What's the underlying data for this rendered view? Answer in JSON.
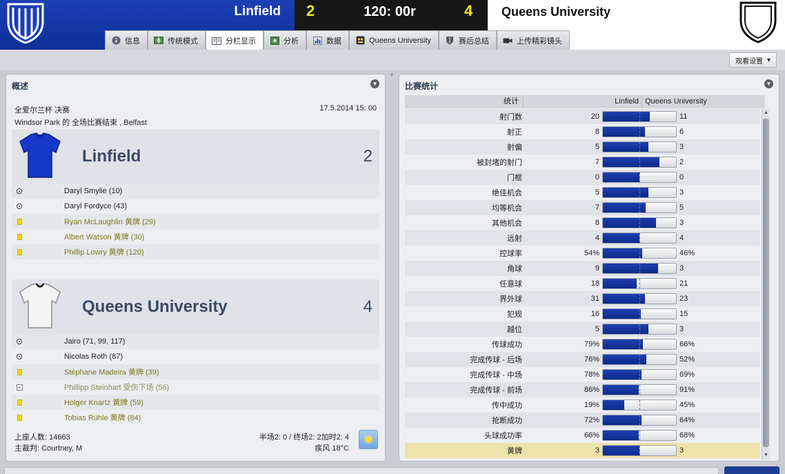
{
  "match": {
    "home_team": "Linfield",
    "home_score": "2",
    "clock": "120: 00r",
    "away_score": "4",
    "away_team": "Queens University"
  },
  "tabs": [
    {
      "label": "信息",
      "icon": "info-icon"
    },
    {
      "label": "传统模式",
      "icon": "pitch-icon"
    },
    {
      "label": "分栏显示",
      "icon": "split-view-icon"
    },
    {
      "label": "分析",
      "icon": "analysis-icon"
    },
    {
      "label": "数据",
      "icon": "stats-icon"
    },
    {
      "label": "Queens University",
      "icon": "team-icon"
    },
    {
      "label": "赛后总结",
      "icon": "shield-icon"
    },
    {
      "label": "上传精彩镜头",
      "icon": "camera-icon"
    }
  ],
  "active_tab": 2,
  "toolbar": {
    "view_settings_label": "观看设置"
  },
  "overview": {
    "title": "概述",
    "competition": "全爱尔兰杯 决赛",
    "datetime": "17.5.2014 15: 00",
    "venue_line": "Windsor Park 的 全场比赛结束 , Belfast",
    "home": {
      "name": "Linfield",
      "score": "2",
      "shirt_color": "#1538c8",
      "events": [
        {
          "type": "goal",
          "text": "Daryl Smylie (10)"
        },
        {
          "type": "goal",
          "text": "Daryl Fordyce (43)"
        },
        {
          "type": "yellow",
          "text": "Ryan McLaughlin 黄牌 (29)"
        },
        {
          "type": "yellow",
          "text": "Albert Watson 黄牌 (30)"
        },
        {
          "type": "yellow",
          "text": "Phillip Lowry 黄牌 (120)"
        }
      ]
    },
    "away": {
      "name": "Queens University",
      "score": "4",
      "shirt_color": "#f4f4f4",
      "events": [
        {
          "type": "goal",
          "text": "Jairo (71, 99, 117)"
        },
        {
          "type": "goal",
          "text": "Nicolas Roth (87)"
        },
        {
          "type": "yellow",
          "text": "Stéphane Madeira 黄牌 (39)"
        },
        {
          "type": "injury",
          "text": "Phillipp Steinhart 受伤下场 (56)"
        },
        {
          "type": "yellow",
          "text": "Holger Knartz 黄牌 (59)"
        },
        {
          "type": "yellow",
          "text": "Tobias Rühle 黄牌 (84)"
        }
      ]
    },
    "attendance": "上座人数: 14663",
    "referee": "主裁判: Courtney, M",
    "scores_line": "半场2: 0 / 终场2: 2加时2: 4",
    "weather_line": "疾风 18°C",
    "weather_icon": "sunny-icon"
  },
  "stats": {
    "title": "比赛统计",
    "header": {
      "stat": "统计",
      "home": "Linfield",
      "away": "Queens University"
    },
    "rows": [
      {
        "label": "射门数",
        "home": "20",
        "away": "11",
        "share": 0.645
      },
      {
        "label": "射正",
        "home": "8",
        "away": "6",
        "share": 0.571
      },
      {
        "label": "射偏",
        "home": "5",
        "away": "3",
        "share": 0.625
      },
      {
        "label": "被封堵的射门",
        "home": "7",
        "away": "2",
        "share": 0.778
      },
      {
        "label": "门框",
        "home": "0",
        "away": "0",
        "share": 0.5
      },
      {
        "label": "绝佳机会",
        "home": "5",
        "away": "3",
        "share": 0.625
      },
      {
        "label": "均等机会",
        "home": "7",
        "away": "5",
        "share": 0.583
      },
      {
        "label": "其他机会",
        "home": "8",
        "away": "3",
        "share": 0.727
      },
      {
        "label": "远射",
        "home": "4",
        "away": "4",
        "share": 0.5
      },
      {
        "label": "控球率",
        "home": "54%",
        "away": "46%",
        "share": 0.54
      },
      {
        "label": "角球",
        "home": "9",
        "away": "3",
        "share": 0.75
      },
      {
        "label": "任意球",
        "home": "18",
        "away": "21",
        "share": 0.462
      },
      {
        "label": "界外球",
        "home": "31",
        "away": "23",
        "share": 0.574
      },
      {
        "label": "犯规",
        "home": "16",
        "away": "15",
        "share": 0.516
      },
      {
        "label": "越位",
        "home": "5",
        "away": "3",
        "share": 0.625
      },
      {
        "label": "传球成功",
        "home": "79%",
        "away": "66%",
        "share": 0.545
      },
      {
        "label": "完成传球 - 后场",
        "home": "76%",
        "away": "52%",
        "share": 0.594
      },
      {
        "label": "完成传球 - 中场",
        "home": "78%",
        "away": "69%",
        "share": 0.531
      },
      {
        "label": "完成传球 - 前场",
        "home": "86%",
        "away": "91%",
        "share": 0.486
      },
      {
        "label": "传中成功",
        "home": "19%",
        "away": "45%",
        "share": 0.297
      },
      {
        "label": "抢断成功",
        "home": "72%",
        "away": "64%",
        "share": 0.529
      },
      {
        "label": "头球成功率",
        "home": "66%",
        "away": "68%",
        "share": 0.493
      },
      {
        "label": "黄牌",
        "home": "3",
        "away": "3",
        "share": 0.5,
        "highlight": true
      }
    ]
  }
}
